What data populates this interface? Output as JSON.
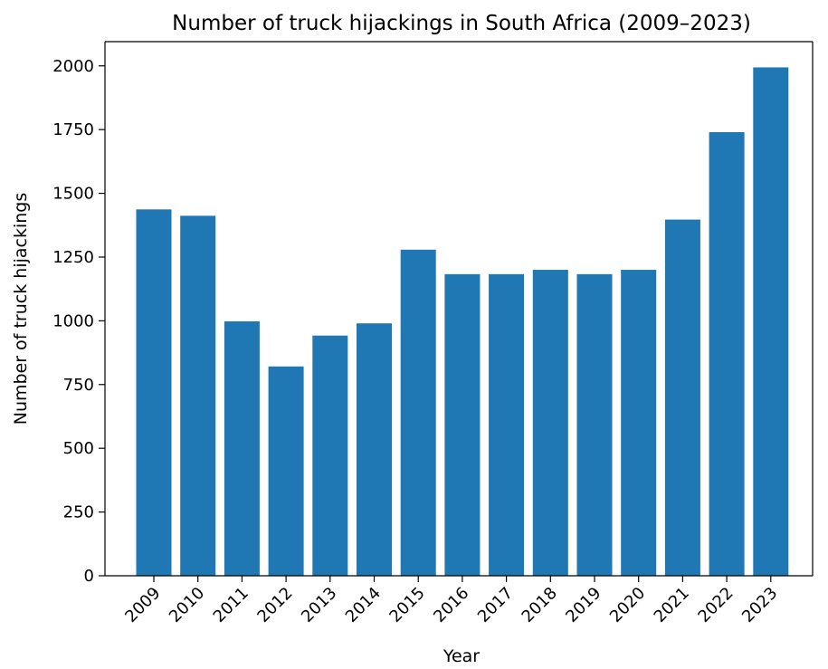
{
  "chart_data": {
    "type": "bar",
    "title": "Number of truck hijackings in South Africa (2009–2023)",
    "xlabel": "Year",
    "ylabel": "Number of truck hijackings",
    "categories": [
      "2009",
      "2010",
      "2011",
      "2012",
      "2013",
      "2014",
      "2015",
      "2016",
      "2017",
      "2018",
      "2019",
      "2020",
      "2021",
      "2022",
      "2023"
    ],
    "values": [
      1437,
      1412,
      998,
      821,
      942,
      990,
      1279,
      1183,
      1183,
      1200,
      1183,
      1200,
      1397,
      1740,
      1994
    ],
    "ylim": [
      0,
      2095
    ],
    "yticks": [
      0,
      250,
      500,
      750,
      1000,
      1250,
      1500,
      1750,
      2000
    ],
    "ytick_labels": [
      "0",
      "250",
      "500",
      "750",
      "1000",
      "1250",
      "1500",
      "1750",
      "2000"
    ],
    "bar_color": "#1f77b4",
    "grid": false,
    "legend": "none"
  }
}
